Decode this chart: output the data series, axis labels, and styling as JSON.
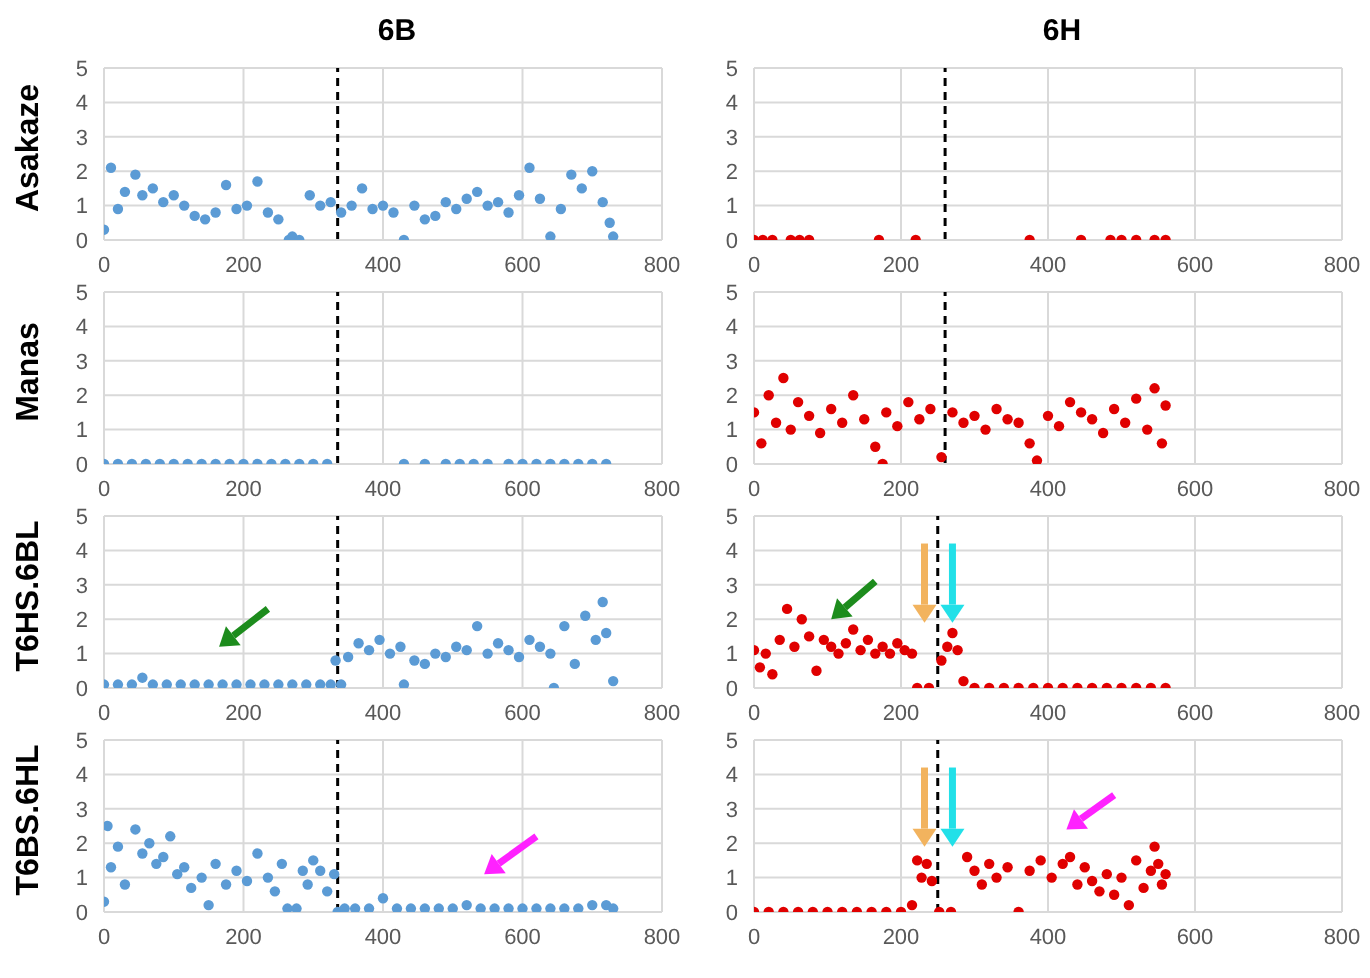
{
  "chart_data": [
    {
      "type": "scatter",
      "title": "6B",
      "ylabel": "Asakaze",
      "color": "#5b9bd5",
      "marker": "circle",
      "grid": true,
      "xlim": [
        0,
        800
      ],
      "xticks": [
        0,
        200,
        400,
        600,
        800
      ],
      "ylim": [
        0,
        5
      ],
      "yticks": [
        0,
        1,
        2,
        3,
        4,
        5
      ],
      "ref_lines": [
        {
          "axis": "x",
          "value": 335,
          "color": "#000000",
          "line_style": "dashed"
        }
      ],
      "x": [
        0,
        10,
        20,
        30,
        45,
        55,
        70,
        85,
        100,
        115,
        130,
        145,
        160,
        175,
        190,
        205,
        220,
        235,
        250,
        265,
        270,
        280,
        295,
        310,
        325,
        340,
        355,
        370,
        385,
        400,
        415,
        430,
        445,
        460,
        475,
        490,
        505,
        520,
        535,
        550,
        565,
        580,
        595,
        610,
        625,
        640,
        655,
        670,
        685,
        700,
        715,
        725,
        730
      ],
      "values": [
        0.3,
        2.1,
        0.9,
        1.4,
        1.9,
        1.3,
        1.5,
        1.1,
        1.3,
        1.0,
        0.7,
        0.6,
        0.8,
        1.6,
        0.9,
        1.0,
        1.7,
        0.8,
        0.6,
        0.0,
        0.1,
        0.0,
        1.3,
        1.0,
        1.1,
        0.8,
        1.0,
        1.5,
        0.9,
        1.0,
        0.8,
        0.0,
        1.0,
        0.6,
        0.7,
        1.1,
        0.9,
        1.2,
        1.4,
        1.0,
        1.1,
        0.8,
        1.3,
        2.1,
        1.2,
        0.1,
        0.9,
        1.9,
        1.5,
        2.0,
        1.1,
        0.5,
        0.1
      ]
    },
    {
      "type": "scatter",
      "title": "6H",
      "color": "#e00000",
      "marker": "circle",
      "grid": true,
      "xlim": [
        0,
        800
      ],
      "xticks": [
        0,
        200,
        400,
        600,
        800
      ],
      "ylim": [
        0,
        5
      ],
      "yticks": [
        0,
        1,
        2,
        3,
        4,
        5
      ],
      "ref_lines": [
        {
          "axis": "x",
          "value": 260,
          "color": "#000000",
          "line_style": "dashed"
        }
      ],
      "x": [
        0,
        12,
        25,
        50,
        62,
        75,
        170,
        220,
        375,
        445,
        485,
        500,
        520,
        545,
        560
      ],
      "values": [
        0,
        0,
        0,
        0,
        0,
        0,
        0,
        0,
        0,
        0,
        0,
        0,
        0,
        0,
        0
      ]
    },
    {
      "type": "scatter",
      "ylabel": "Manas",
      "color": "#5b9bd5",
      "marker": "circle",
      "grid": true,
      "xlim": [
        0,
        800
      ],
      "xticks": [
        0,
        200,
        400,
        600,
        800
      ],
      "ylim": [
        0,
        5
      ],
      "yticks": [
        0,
        1,
        2,
        3,
        4,
        5
      ],
      "ref_lines": [
        {
          "axis": "x",
          "value": 335,
          "color": "#000000",
          "line_style": "dashed"
        }
      ],
      "x": [
        0,
        20,
        40,
        60,
        80,
        100,
        120,
        140,
        160,
        180,
        200,
        220,
        240,
        260,
        280,
        300,
        320,
        430,
        460,
        490,
        510,
        530,
        550,
        580,
        600,
        620,
        640,
        660,
        680,
        700,
        720
      ],
      "values": [
        0,
        0,
        0,
        0,
        0,
        0,
        0,
        0,
        0,
        0,
        0,
        0,
        0,
        0,
        0,
        0,
        0,
        0,
        0,
        0,
        0,
        0,
        0,
        0,
        0,
        0,
        0,
        0,
        0,
        0,
        0
      ]
    },
    {
      "type": "scatter",
      "color": "#e00000",
      "marker": "circle",
      "grid": true,
      "xlim": [
        0,
        800
      ],
      "xticks": [
        0,
        200,
        400,
        600,
        800
      ],
      "ylim": [
        0,
        5
      ],
      "yticks": [
        0,
        1,
        2,
        3,
        4,
        5
      ],
      "ref_lines": [
        {
          "axis": "x",
          "value": 260,
          "color": "#000000",
          "line_style": "dashed"
        }
      ],
      "x": [
        0,
        10,
        20,
        30,
        40,
        50,
        60,
        75,
        90,
        105,
        120,
        135,
        150,
        165,
        175,
        180,
        195,
        210,
        225,
        240,
        255,
        270,
        285,
        300,
        315,
        330,
        345,
        360,
        375,
        385,
        400,
        415,
        430,
        445,
        460,
        475,
        490,
        505,
        520,
        535,
        545,
        555,
        560
      ],
      "values": [
        1.5,
        0.6,
        2.0,
        1.2,
        2.5,
        1.0,
        1.8,
        1.4,
        0.9,
        1.6,
        1.2,
        2.0,
        1.3,
        0.5,
        0.0,
        1.5,
        1.1,
        1.8,
        1.3,
        1.6,
        0.2,
        1.5,
        1.2,
        1.4,
        1.0,
        1.6,
        1.3,
        1.2,
        0.6,
        0.1,
        1.4,
        1.1,
        1.8,
        1.5,
        1.3,
        0.9,
        1.6,
        1.2,
        1.9,
        1.0,
        2.2,
        0.6,
        1.7
      ]
    },
    {
      "type": "scatter",
      "ylabel": "T6HS.6BL",
      "color": "#5b9bd5",
      "marker": "circle",
      "grid": true,
      "xlim": [
        0,
        800
      ],
      "xticks": [
        0,
        200,
        400,
        600,
        800
      ],
      "ylim": [
        0,
        5
      ],
      "yticks": [
        0,
        1,
        2,
        3,
        4,
        5
      ],
      "ref_lines": [
        {
          "axis": "x",
          "value": 335,
          "color": "#000000",
          "line_style": "dashed"
        }
      ],
      "x": [
        0,
        20,
        40,
        55,
        70,
        90,
        110,
        130,
        150,
        170,
        190,
        210,
        230,
        250,
        270,
        290,
        310,
        325,
        332,
        340,
        350,
        365,
        380,
        395,
        410,
        425,
        430,
        445,
        460,
        475,
        490,
        505,
        520,
        535,
        550,
        565,
        580,
        595,
        610,
        625,
        640,
        645,
        660,
        675,
        690,
        705,
        715,
        720,
        730
      ],
      "values": [
        0.1,
        0.1,
        0.1,
        0.3,
        0.1,
        0.1,
        0.1,
        0.1,
        0.1,
        0.1,
        0.1,
        0.1,
        0.1,
        0.1,
        0.1,
        0.1,
        0.1,
        0.1,
        0.8,
        0.1,
        0.9,
        1.3,
        1.1,
        1.4,
        1.0,
        1.2,
        0.1,
        0.8,
        0.7,
        1.0,
        0.9,
        1.2,
        1.1,
        1.8,
        1.0,
        1.3,
        1.1,
        0.9,
        1.4,
        1.2,
        1.0,
        0.0,
        1.8,
        0.7,
        2.1,
        1.4,
        2.5,
        1.6,
        0.2
      ]
    },
    {
      "type": "scatter",
      "color": "#e00000",
      "marker": "circle",
      "grid": true,
      "xlim": [
        0,
        800
      ],
      "xticks": [
        0,
        200,
        400,
        600,
        800
      ],
      "ylim": [
        0,
        5
      ],
      "yticks": [
        0,
        1,
        2,
        3,
        4,
        5
      ],
      "ref_lines": [
        {
          "axis": "x",
          "value": 250,
          "color": "#000000",
          "line_style": "dashed"
        }
      ],
      "x": [
        0,
        8,
        16,
        25,
        35,
        45,
        55,
        65,
        75,
        85,
        95,
        105,
        115,
        125,
        135,
        145,
        155,
        165,
        175,
        185,
        195,
        205,
        215,
        222,
        238,
        255,
        263,
        270,
        277,
        285,
        300,
        320,
        340,
        360,
        380,
        400,
        420,
        440,
        460,
        480,
        500,
        520,
        540,
        560
      ],
      "values": [
        1.1,
        0.6,
        1.0,
        0.4,
        1.4,
        2.3,
        1.2,
        2.0,
        1.5,
        0.5,
        1.4,
        1.2,
        1.0,
        1.3,
        1.7,
        1.1,
        1.4,
        1.0,
        1.2,
        1.0,
        1.3,
        1.1,
        1.0,
        0,
        0,
        0.8,
        1.2,
        1.6,
        1.1,
        0.2,
        0,
        0,
        0,
        0,
        0,
        0,
        0,
        0,
        0,
        0,
        0,
        0,
        0,
        0
      ]
    },
    {
      "type": "scatter",
      "ylabel": "T6BS.6HL",
      "color": "#5b9bd5",
      "marker": "circle",
      "grid": true,
      "xlim": [
        0,
        800
      ],
      "xticks": [
        0,
        200,
        400,
        600,
        800
      ],
      "ylim": [
        0,
        5
      ],
      "yticks": [
        0,
        1,
        2,
        3,
        4,
        5
      ],
      "ref_lines": [
        {
          "axis": "x",
          "value": 335,
          "color": "#000000",
          "line_style": "dashed"
        }
      ],
      "x": [
        0,
        5,
        10,
        20,
        30,
        45,
        55,
        65,
        75,
        85,
        95,
        105,
        115,
        125,
        140,
        150,
        160,
        175,
        190,
        205,
        220,
        235,
        245,
        255,
        263,
        276,
        285,
        292,
        300,
        310,
        320,
        330,
        335,
        345,
        360,
        380,
        400,
        420,
        440,
        460,
        480,
        500,
        520,
        540,
        560,
        580,
        600,
        620,
        640,
        660,
        680,
        700,
        720,
        730
      ],
      "values": [
        0.3,
        2.5,
        1.3,
        1.9,
        0.8,
        2.4,
        1.7,
        2.0,
        1.4,
        1.6,
        2.2,
        1.1,
        1.3,
        0.7,
        1.0,
        0.2,
        1.4,
        0.8,
        1.2,
        0.9,
        1.7,
        1.0,
        0.6,
        1.4,
        0.1,
        0.1,
        1.2,
        0.8,
        1.5,
        1.2,
        0.6,
        1.1,
        0.0,
        0.1,
        0.1,
        0.1,
        0.4,
        0.1,
        0.1,
        0.1,
        0.1,
        0.1,
        0.2,
        0.1,
        0.1,
        0.1,
        0.1,
        0.1,
        0.1,
        0.1,
        0.1,
        0.2,
        0.2,
        0.1
      ]
    },
    {
      "type": "scatter",
      "color": "#e00000",
      "marker": "circle",
      "grid": true,
      "xlim": [
        0,
        800
      ],
      "xticks": [
        0,
        200,
        400,
        600,
        800
      ],
      "ylim": [
        0,
        5
      ],
      "yticks": [
        0,
        1,
        2,
        3,
        4,
        5
      ],
      "ref_lines": [
        {
          "axis": "x",
          "value": 250,
          "color": "#000000",
          "line_style": "dashed"
        }
      ],
      "x": [
        0,
        20,
        40,
        60,
        80,
        100,
        120,
        140,
        160,
        180,
        200,
        215,
        222,
        228,
        235,
        242,
        252,
        268,
        290,
        300,
        310,
        320,
        330,
        345,
        360,
        375,
        390,
        405,
        420,
        430,
        440,
        450,
        460,
        470,
        480,
        490,
        500,
        510,
        520,
        530,
        540,
        545,
        550,
        555,
        560
      ],
      "values": [
        0,
        0,
        0,
        0,
        0,
        0,
        0,
        0,
        0,
        0,
        0,
        0.2,
        1.5,
        1.0,
        1.4,
        0.9,
        0,
        0,
        1.6,
        1.2,
        0.8,
        1.4,
        1.0,
        1.3,
        0.0,
        1.2,
        1.5,
        1.0,
        1.4,
        1.6,
        0.8,
        1.3,
        0.9,
        0.6,
        1.1,
        0.5,
        1.0,
        0.2,
        1.5,
        0.7,
        1.2,
        1.9,
        1.4,
        0.8,
        1.1
      ]
    }
  ]
}
